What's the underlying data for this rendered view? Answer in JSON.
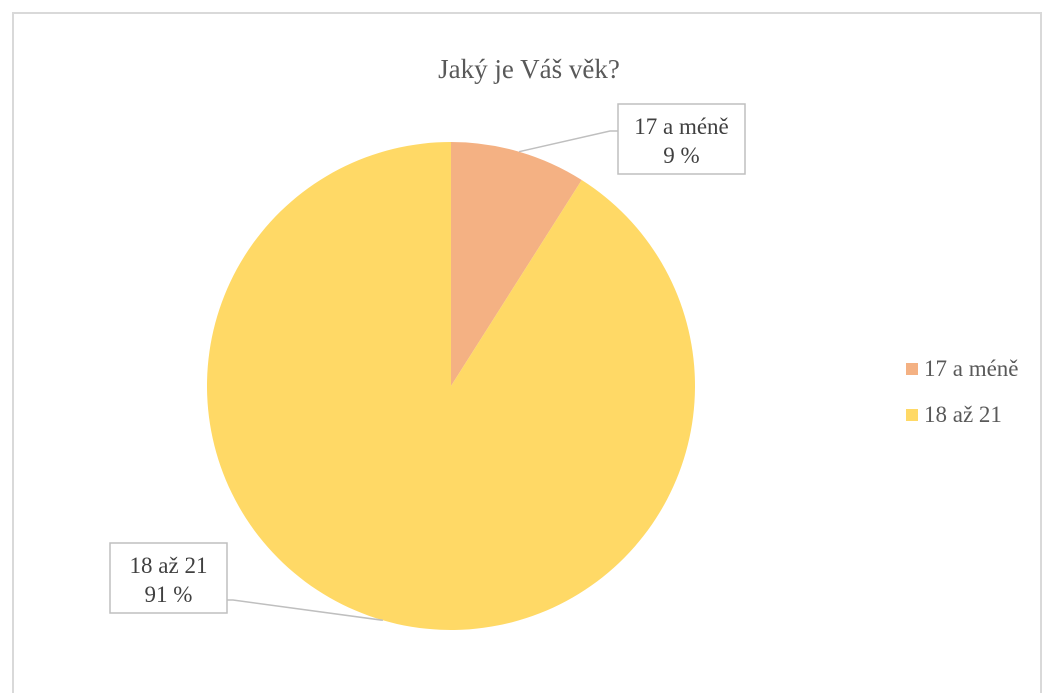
{
  "chart_data": {
    "type": "pie",
    "title": "Jaký je Váš věk?",
    "categories": [
      "17 a méně",
      "18 až 21"
    ],
    "values": [
      9,
      91
    ],
    "value_unit": "%",
    "colors": [
      "#f4b183",
      "#ffd966"
    ],
    "data_labels": [
      {
        "category": "17 a méně",
        "percent": "9 %"
      },
      {
        "category": "18 až 21",
        "percent": "91 %"
      }
    ],
    "legend_placement": "right",
    "grid": false
  }
}
